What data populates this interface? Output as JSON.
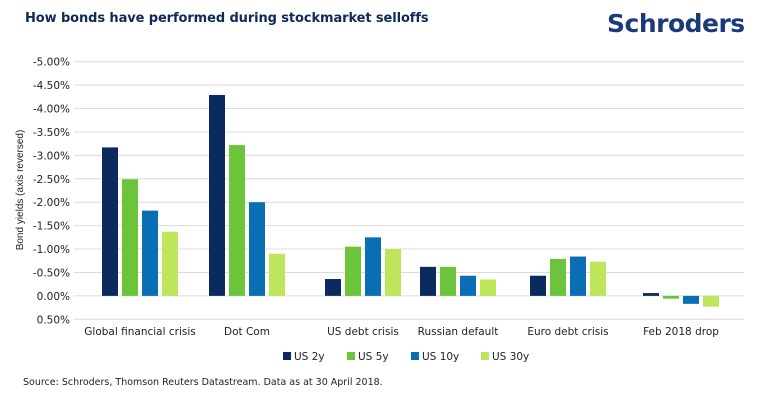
{
  "header": {
    "title": "How bonds have performed during stockmarket selloffs",
    "logo": "Schroders"
  },
  "footer": {
    "source": "Source: Schroders, Thomson Reuters Datastream. Data as at 30 April 2018."
  },
  "colors": {
    "title": "#0f2a57",
    "logo": "#1b3a7a",
    "grid": "#dcdcdc"
  },
  "chart_data": {
    "type": "bar",
    "title": "How bonds have performed during stockmarket selloffs",
    "xlabel": "",
    "ylabel": "Bond yields (axis reversed)",
    "y_axis_reversed": true,
    "ylim": [
      -5.0,
      0.5
    ],
    "y_ticks": [
      -5.0,
      -4.5,
      -4.0,
      -3.5,
      -3.0,
      -2.5,
      -2.0,
      -1.5,
      -1.0,
      -0.5,
      0.0,
      0.5
    ],
    "y_tick_labels": [
      "-5.00%",
      "-4.50%",
      "-4.00%",
      "-3.50%",
      "-3.00%",
      "-2.50%",
      "-2.00%",
      "-1.50%",
      "-1.00%",
      "-0.50%",
      "0.00%",
      "0.50%"
    ],
    "grid": true,
    "legend_position": "bottom-center",
    "categories": [
      "Global financial crisis",
      "Dot Com",
      "US debt crisis",
      "Russian default",
      "Euro debt crisis",
      "Feb 2018 drop"
    ],
    "series": [
      {
        "name": "US 2y",
        "color": "#0b2b5e",
        "values": [
          -3.17,
          -4.29,
          -0.36,
          -0.62,
          -0.43,
          -0.06
        ]
      },
      {
        "name": "US 5y",
        "color": "#6cc43a",
        "values": [
          -2.49,
          -3.22,
          -1.05,
          -0.62,
          -0.79,
          0.06
        ]
      },
      {
        "name": "US 10y",
        "color": "#0a6eb4",
        "values": [
          -1.82,
          -2.0,
          -1.25,
          -0.43,
          -0.84,
          0.17
        ]
      },
      {
        "name": "US 30y",
        "color": "#bde65a",
        "values": [
          -1.37,
          -0.9,
          -1.0,
          -0.35,
          -0.73,
          0.23
        ]
      }
    ]
  }
}
